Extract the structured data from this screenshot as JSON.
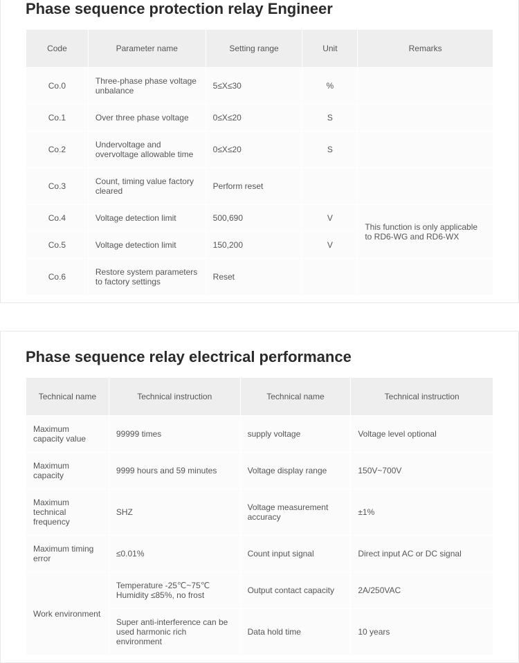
{
  "section1": {
    "title": "Phase sequence protection relay Engineer",
    "headers": [
      "Code",
      "Parameter name",
      "Setting range",
      "Unit",
      "Remarks"
    ],
    "rows": [
      {
        "code": "Co.0",
        "param": "Three-phase phase voltage unbalance",
        "range": "5≤X≤30",
        "unit": "%",
        "remark": ""
      },
      {
        "code": "Co.1",
        "param": "Over three phase voltage",
        "range": "0≤X≤20",
        "unit": "S",
        "remark": ""
      },
      {
        "code": "Co.2",
        "param": "Undervoltage and overvoltage allowable time",
        "range": "0≤X≤20",
        "unit": "S",
        "remark": ""
      },
      {
        "code": "Co.3",
        "param": "Count, timing value factory cleared",
        "range": "Perform reset",
        "unit": "",
        "remark": ""
      },
      {
        "code": "Co.4",
        "param": "Voltage detection limit",
        "range": "500,690",
        "unit": "V",
        "remark": ""
      },
      {
        "code": "Co.5",
        "param": "Voltage detection limit",
        "range": "150,200",
        "unit": "V",
        "remark": ""
      },
      {
        "code": "Co.6",
        "param": "Restore system parameters to factory settings",
        "range": "Reset",
        "unit": "",
        "remark": ""
      }
    ],
    "merged_remark": "This function is only applicable to RD6-WG and RD6-WX"
  },
  "section2": {
    "title": "Phase sequence relay electrical performance",
    "headers": [
      "Technical name",
      "Technical instruction",
      "Technical name",
      "Technical instruction"
    ],
    "rows": [
      {
        "a": "Maximum capacity value",
        "b": "99999 times",
        "c": "supply voltage",
        "d": "Voltage level optional"
      },
      {
        "a": "Maximum capacity",
        "b": "9999 hours and 59 minutes",
        "c": "Voltage display range",
        "d": "150V~700V"
      },
      {
        "a": "Maximum technical frequency",
        "b": "SHZ",
        "c": "Voltage measurement accuracy",
        "d": "±1%"
      },
      {
        "a": "Maximum timing error",
        "b": "≤0.01%",
        "c": "Count input signal",
        "d": "Direct input AC or DC signal"
      },
      {
        "a": "Work environment",
        "b": "Temperature -25℃~75℃ Humidity ≤85%, no frost",
        "c": "Output contact capacity",
        "d": "2A/250VAC"
      },
      {
        "a": "",
        "b": "Super anti-interference can be used harmonic rich environment",
        "c": "Data hold time",
        "d": "10 years"
      }
    ]
  }
}
